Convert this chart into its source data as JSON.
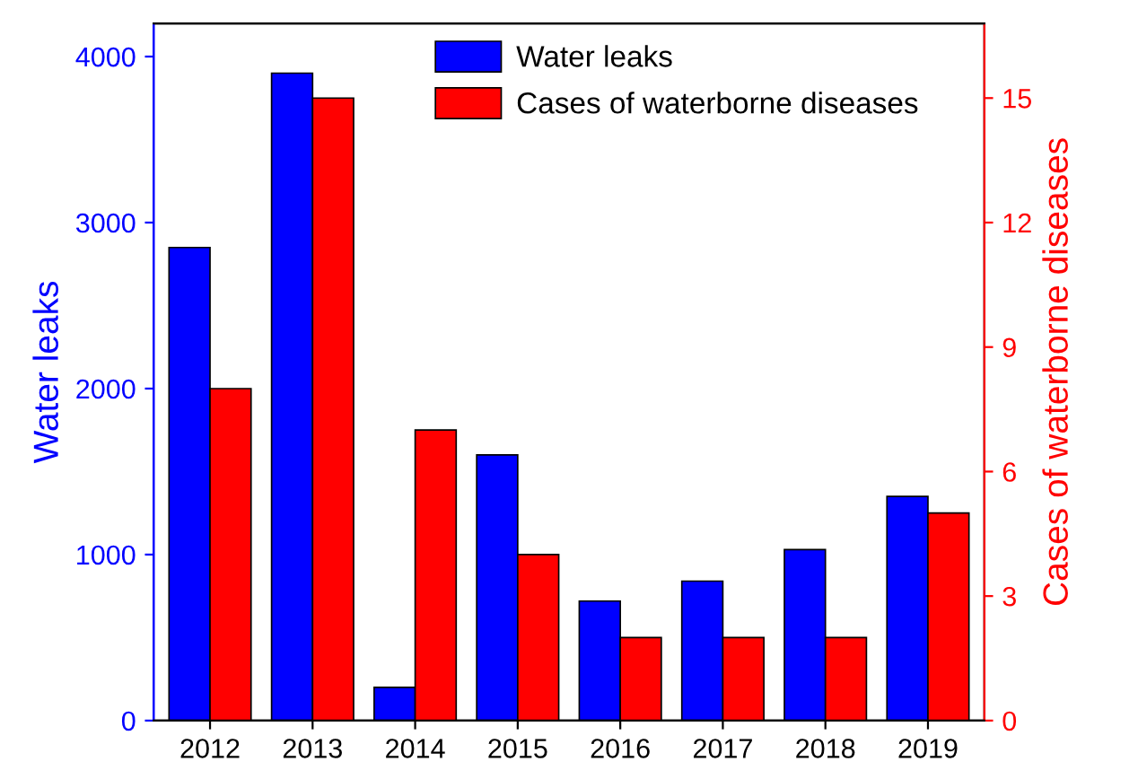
{
  "chart_data": {
    "type": "bar",
    "categories": [
      "2012",
      "2013",
      "2014",
      "2015",
      "2016",
      "2017",
      "2018",
      "2019"
    ],
    "ylabel": "Water leaks",
    "y2label": "Cases of waterborne diseases",
    "series": [
      {
        "name": "Water leaks",
        "color": "#0000ff",
        "values": [
          2850,
          3900,
          200,
          1600,
          720,
          840,
          1030,
          1350
        ]
      },
      {
        "name": "Cases of waterborne diseases",
        "color": "#ff0000",
        "axis": "y2",
        "values": [
          8,
          15,
          7,
          4,
          2,
          2,
          2,
          5
        ]
      }
    ],
    "ylim": [
      0,
      4200
    ],
    "yticks": [
      0,
      1000,
      2000,
      3000,
      4000
    ],
    "y2lim": [
      0,
      16.8
    ],
    "y2ticks": [
      0,
      3,
      6,
      9,
      12,
      15
    ],
    "legend": "top",
    "grid": false
  }
}
